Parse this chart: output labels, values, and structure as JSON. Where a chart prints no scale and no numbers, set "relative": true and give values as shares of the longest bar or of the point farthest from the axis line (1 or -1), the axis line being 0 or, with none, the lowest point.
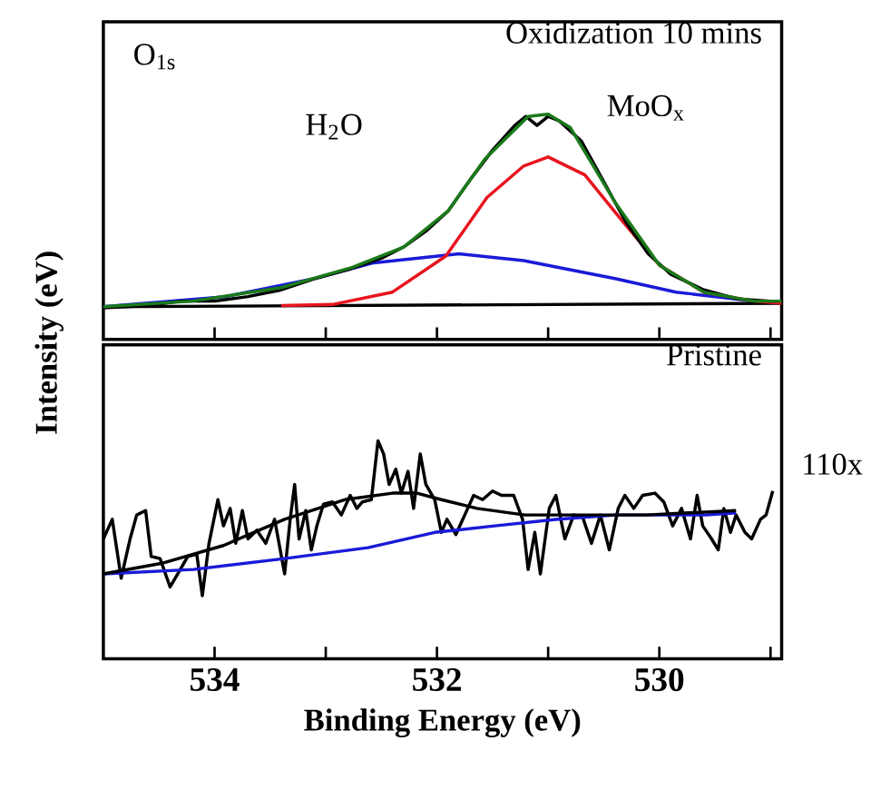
{
  "chart_data": [
    {
      "type": "line",
      "title": "Oxidization 10 mins",
      "ylabel": "Intensity (eV)",
      "relative": true,
      "xlim": [
        535.0,
        528.9
      ],
      "xticks": [
        534,
        {
          "value": 533,
          "label": null
        },
        532,
        {
          "value": 531,
          "label": null
        },
        530,
        {
          "value": 529,
          "label": null
        }
      ],
      "tick_labels": false,
      "annotations": [
        "O$_{1s}$",
        "H$_{2}$O",
        "MoO$_{x}$"
      ],
      "series": [
        {
          "color": "#000000",
          "x": [
            535.0,
            528.9
          ],
          "values": [
            0.145,
            0.16
          ]
        },
        {
          "color": "#1a1ad8",
          "x": [
            535.0,
            533.9,
            533.1,
            532.57,
            531.8,
            531.22,
            530.4,
            529.85,
            529.15
          ],
          "values": [
            0.145,
            0.19,
            0.27,
            0.34,
            0.38,
            0.35,
            0.27,
            0.21,
            0.17
          ]
        },
        {
          "color": "#e8141e",
          "x": [
            533.4,
            532.94,
            532.4,
            531.92,
            531.55,
            531.22,
            531.0,
            530.67,
            530.34,
            530.0,
            529.6,
            529.15,
            528.9
          ],
          "values": [
            0.15,
            0.155,
            0.21,
            0.37,
            0.63,
            0.77,
            0.81,
            0.73,
            0.53,
            0.33,
            0.21,
            0.17,
            0.16
          ]
        },
        {
          "color": "#000000",
          "x": [
            535.0,
            534.6,
            534.3,
            534.0,
            533.7,
            533.4,
            533.1,
            532.8,
            532.5,
            532.3,
            532.1,
            531.9,
            531.7,
            531.5,
            531.3,
            531.2,
            531.1,
            531.0,
            530.9,
            530.7,
            530.5,
            530.3,
            530.1,
            529.9,
            529.6,
            529.3,
            529.0,
            528.9
          ],
          "values": [
            0.14,
            0.15,
            0.17,
            0.17,
            0.19,
            0.22,
            0.27,
            0.31,
            0.36,
            0.41,
            0.48,
            0.57,
            0.71,
            0.84,
            0.95,
            0.99,
            0.95,
            0.99,
            0.97,
            0.88,
            0.7,
            0.52,
            0.38,
            0.29,
            0.22,
            0.18,
            0.17,
            0.17
          ]
        },
        {
          "color": "#1a7a1a",
          "x": [
            535.0,
            534.2,
            533.4,
            532.76,
            532.3,
            531.9,
            531.57,
            531.18,
            531.0,
            530.8,
            530.4,
            530.0,
            529.6,
            529.15,
            528.9
          ],
          "values": [
            0.145,
            0.17,
            0.23,
            0.32,
            0.41,
            0.57,
            0.8,
            0.99,
            1.0,
            0.94,
            0.61,
            0.33,
            0.21,
            0.17,
            0.17
          ]
        }
      ]
    },
    {
      "type": "line",
      "title": "Pristine",
      "xlabel": "Binding Energy (eV)",
      "relative": true,
      "xlim": [
        535.0,
        528.9
      ],
      "xticks": [
        534,
        {
          "value": 533,
          "label": null
        },
        532,
        {
          "value": 531,
          "label": null
        },
        530,
        {
          "value": 529,
          "label": null
        }
      ],
      "tick_labels": "x",
      "annotations": [
        "110x"
      ],
      "series": [
        {
          "color": "#000000",
          "x": [
            535.0,
            534.92,
            534.84,
            534.76,
            534.7,
            534.62,
            534.57,
            534.49,
            534.4,
            534.32,
            534.24,
            534.16,
            534.11,
            534.05,
            533.97,
            533.92,
            533.86,
            533.81,
            533.75,
            533.7,
            533.62,
            533.54,
            533.46,
            533.37,
            533.32,
            533.28,
            533.24,
            533.18,
            533.13,
            533.08,
            533.02,
            532.94,
            532.86,
            532.78,
            532.72,
            532.67,
            532.59,
            532.53,
            532.48,
            532.43,
            532.37,
            532.32,
            532.26,
            532.21,
            532.15,
            532.1,
            532.02,
            531.96,
            531.91,
            531.83,
            531.75,
            531.67,
            531.59,
            531.5,
            531.42,
            531.31,
            531.23,
            531.18,
            531.12,
            531.07,
            530.99,
            530.93,
            530.85,
            530.77,
            530.69,
            530.61,
            530.53,
            530.45,
            530.37,
            530.31,
            530.23,
            530.15,
            530.04,
            529.96,
            529.88,
            529.8,
            529.72,
            529.66,
            529.61,
            529.53,
            529.47,
            529.42,
            529.36,
            529.31,
            529.23,
            529.17,
            529.09,
            529.04,
            528.98
          ],
          "values": [
            0.55,
            0.64,
            0.37,
            0.55,
            0.66,
            0.68,
            0.47,
            0.46,
            0.33,
            0.4,
            0.47,
            0.48,
            0.29,
            0.53,
            0.73,
            0.61,
            0.69,
            0.53,
            0.68,
            0.55,
            0.59,
            0.53,
            0.64,
            0.39,
            0.64,
            0.8,
            0.55,
            0.68,
            0.5,
            0.61,
            0.71,
            0.72,
            0.66,
            0.75,
            0.69,
            0.72,
            0.73,
            1.0,
            0.94,
            0.8,
            0.87,
            0.76,
            0.86,
            0.69,
            0.94,
            0.8,
            0.73,
            0.58,
            0.64,
            0.57,
            0.66,
            0.75,
            0.73,
            0.77,
            0.75,
            0.75,
            0.64,
            0.41,
            0.58,
            0.39,
            0.69,
            0.75,
            0.55,
            0.66,
            0.65,
            0.53,
            0.66,
            0.5,
            0.69,
            0.75,
            0.69,
            0.75,
            0.76,
            0.72,
            0.61,
            0.69,
            0.55,
            0.75,
            0.61,
            0.55,
            0.5,
            0.69,
            0.58,
            0.66,
            0.58,
            0.55,
            0.64,
            0.66,
            0.77
          ]
        },
        {
          "color": "#1a1ad8",
          "x": [
            535.0,
            534.19,
            533.37,
            532.62,
            532.02,
            531.48,
            530.93,
            530.39,
            529.58,
            529.31
          ],
          "values": [
            0.39,
            0.41,
            0.46,
            0.51,
            0.58,
            0.61,
            0.64,
            0.66,
            0.66,
            0.67
          ]
        },
        {
          "color": "#000000",
          "x": [
            535.0,
            534.46,
            533.92,
            533.37,
            532.83,
            532.4,
            532.18,
            531.96,
            531.64,
            531.21,
            530.66,
            530.12,
            529.31
          ],
          "values": [
            0.39,
            0.44,
            0.52,
            0.64,
            0.73,
            0.76,
            0.76,
            0.73,
            0.69,
            0.66,
            0.66,
            0.66,
            0.68
          ]
        }
      ]
    }
  ]
}
